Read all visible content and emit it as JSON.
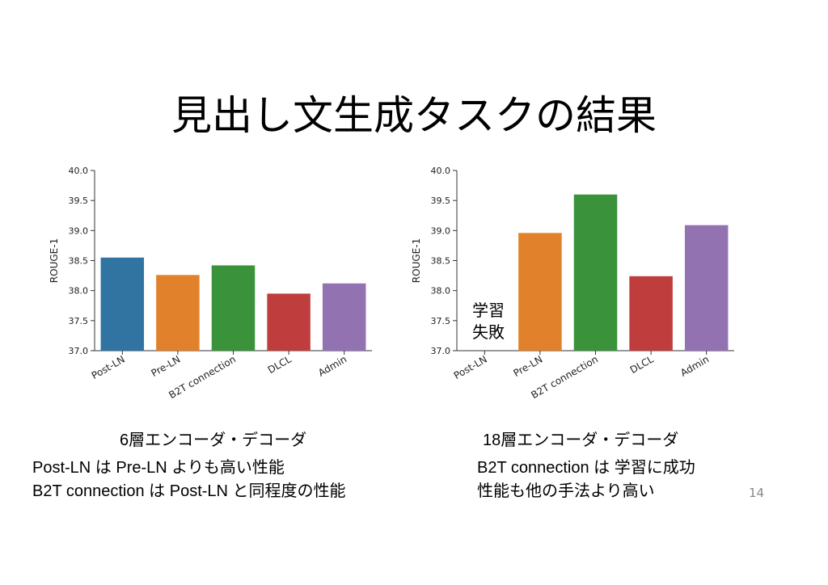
{
  "slide": {
    "title": "見出し文生成タスクの結果",
    "page_number": "14"
  },
  "chart_data": [
    {
      "type": "bar",
      "ylabel": "ROUGE-1",
      "xlabel": "",
      "ylim": [
        37.0,
        40.0
      ],
      "yticks": [
        "37.0",
        "37.5",
        "38.0",
        "38.5",
        "39.0",
        "39.5",
        "40.0"
      ],
      "categories": [
        "Post-LN",
        "Pre-LN",
        "B2T connection",
        "DLCL",
        "Admin"
      ],
      "values": [
        38.55,
        38.26,
        38.42,
        37.95,
        38.12
      ],
      "colors": [
        "#3274a1",
        "#e1812c",
        "#3a923a",
        "#c03d3e",
        "#9372b2"
      ],
      "caption": "6層エンコーダ・デコーダ",
      "notes": [
        "Post-LN は Pre-LN よりも高い性能",
        "B2T connection は Post-LN と同程度の性能"
      ]
    },
    {
      "type": "bar",
      "ylabel": "ROUGE-1",
      "xlabel": "",
      "ylim": [
        37.0,
        40.0
      ],
      "yticks": [
        "37.0",
        "37.5",
        "38.0",
        "38.5",
        "39.0",
        "39.5",
        "40.0"
      ],
      "categories": [
        "Post-LN",
        "Pre-LN",
        "B2T connection",
        "DLCL",
        "Admin"
      ],
      "values": [
        null,
        38.96,
        39.6,
        38.24,
        39.09
      ],
      "colors": [
        "#3274a1",
        "#e1812c",
        "#3a923a",
        "#c03d3e",
        "#9372b2"
      ],
      "annotation": [
        "学習",
        "失敗"
      ],
      "caption": "18層エンコーダ・デコーダ",
      "notes": [
        "B2T connection は 学習に成功",
        "性能も他の手法より高い"
      ]
    }
  ]
}
